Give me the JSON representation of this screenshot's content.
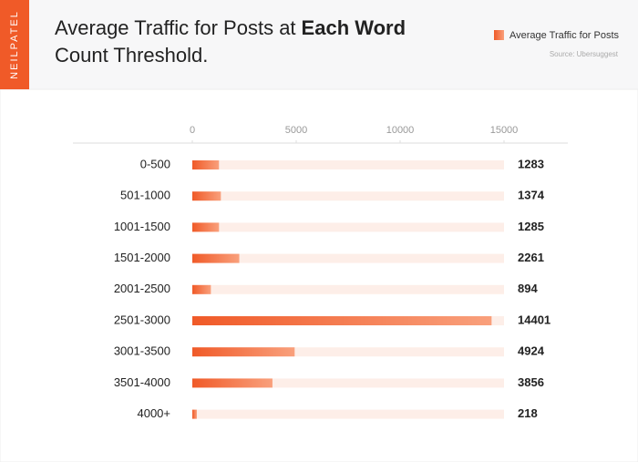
{
  "brand": "NEILPATEL",
  "chart_data": {
    "type": "bar",
    "orientation": "horizontal",
    "title": [
      "Average Traffic for Posts at",
      "Each Word",
      "Count Threshold."
    ],
    "source": "Source: Ubersuggest",
    "categories": [
      "0-500",
      "501-1000",
      "1001-1500",
      "1501-2000",
      "2001-2500",
      "2501-3000",
      "3001-3500",
      "3501-4000",
      "4000+"
    ],
    "series": [
      {
        "name": "Average Traffic for Posts",
        "color": "#f05a28",
        "values": [
          1283,
          1374,
          1285,
          2261,
          894,
          14401,
          4924,
          3856,
          218
        ]
      }
    ],
    "xlim": [
      0,
      15000
    ],
    "xticks": [
      0,
      5000,
      10000,
      15000
    ],
    "legend": "top-right"
  }
}
